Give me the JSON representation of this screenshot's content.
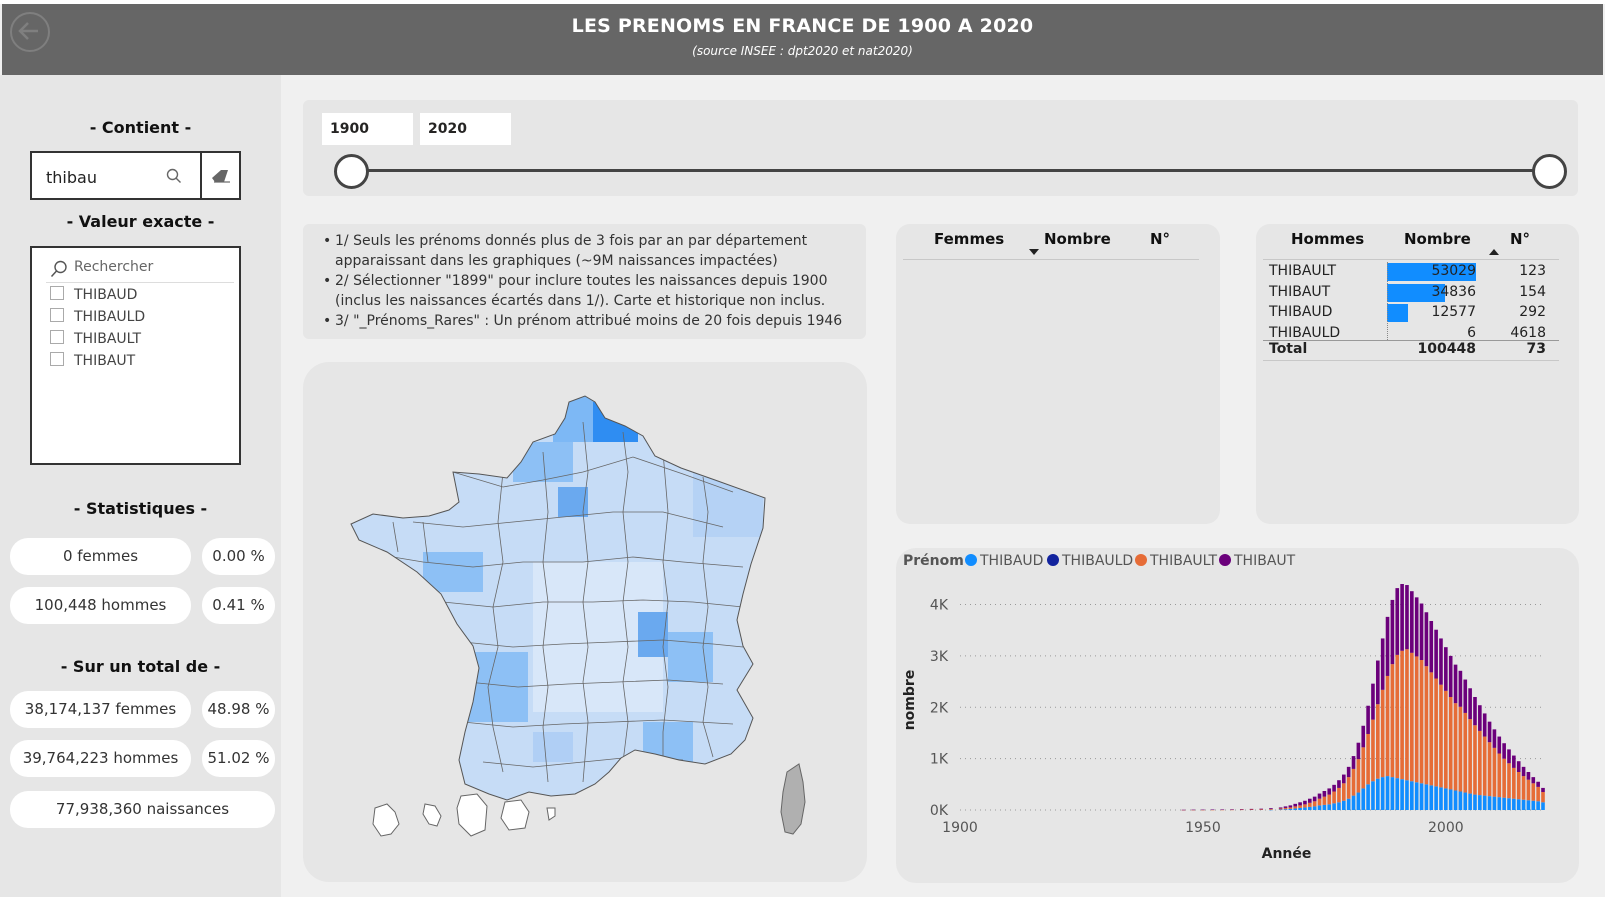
{
  "header": {
    "title": "LES PRENOMS EN FRANCE DE 1900 A 2020",
    "subtitle": "(source INSEE : dpt2020 et nat2020)"
  },
  "sidebar": {
    "contient": {
      "title": "- Contient -",
      "value": "thibau"
    },
    "valeur_exacte": {
      "title": "- Valeur exacte -",
      "placeholder": "Rechercher",
      "items": [
        "THIBAUD",
        "THIBAULD",
        "THIBAULT",
        "THIBAUT"
      ]
    },
    "statistiques": {
      "title": "- Statistiques -",
      "femmes": "0 femmes",
      "femmes_pct": "0.00 %",
      "hommes": "100,448 hommes",
      "hommes_pct": "0.41 %"
    },
    "total": {
      "title": "- Sur un total de -",
      "femmes": "38,174,137 femmes",
      "femmes_pct": "48.98 %",
      "hommes": "39,764,223 hommes",
      "hommes_pct": "51.02 %",
      "naissances": "77,938,360 naissances"
    }
  },
  "slider": {
    "start": "1900",
    "end": "2020"
  },
  "notes": [
    "1/ Seuls les prénoms donnés plus de 3 fois par an par département apparaissant dans les graphiques (~9M naissances impactées)",
    "2/ Sélectionner \"1899\" pour inclure toutes les naissances depuis 1900 (inclus les naissances écartés dans 1/). Carte et historique non inclus.",
    "3/ \"_Prénoms_Rares\" : Un prénom attribué moins de 20 fois depuis 1946"
  ],
  "femmes_table": {
    "headers": [
      "Femmes",
      "Nombre",
      "N°"
    ]
  },
  "hommes_table": {
    "headers": [
      "Hommes",
      "Nombre",
      "N°"
    ],
    "rows": [
      {
        "name": "THIBAULT",
        "nombre": "53029",
        "rank": "123",
        "value": 53029
      },
      {
        "name": "THIBAUT",
        "nombre": "34836",
        "rank": "154",
        "value": 34836
      },
      {
        "name": "THIBAUD",
        "nombre": "12577",
        "rank": "292",
        "value": 12577
      },
      {
        "name": "THIBAULD",
        "nombre": "6",
        "rank": "4618",
        "value": 6
      }
    ],
    "total": {
      "label": "Total",
      "nombre": "100448",
      "rank": "73"
    },
    "bar_color": "#118dff"
  },
  "chart_data": {
    "type": "bar",
    "stacked": true,
    "legend_title": "Prénom",
    "xlabel": "Année",
    "ylabel": "nombre",
    "x_ticks": [
      "1900",
      "1950",
      "2000"
    ],
    "y_ticks": [
      "0K",
      "1K",
      "2K",
      "3K",
      "4K"
    ],
    "xlim": [
      1900,
      2020
    ],
    "ylim": [
      0,
      4400
    ],
    "grid": true,
    "legend_position": "top-left",
    "x": [
      1946,
      1948,
      1950,
      1952,
      1954,
      1956,
      1958,
      1960,
      1962,
      1964,
      1966,
      1967,
      1968,
      1969,
      1970,
      1971,
      1972,
      1973,
      1974,
      1975,
      1976,
      1977,
      1978,
      1979,
      1980,
      1981,
      1982,
      1983,
      1984,
      1985,
      1986,
      1987,
      1988,
      1989,
      1990,
      1991,
      1992,
      1993,
      1994,
      1995,
      1996,
      1997,
      1998,
      1999,
      2000,
      2001,
      2002,
      2003,
      2004,
      2005,
      2006,
      2007,
      2008,
      2009,
      2010,
      2011,
      2012,
      2013,
      2014,
      2015,
      2016,
      2017,
      2018,
      2019,
      2020
    ],
    "series": [
      {
        "name": "THIBAUD",
        "color": "#118dff",
        "values": [
          0,
          0,
          0,
          0,
          0,
          0,
          0,
          0,
          0,
          5,
          10,
          15,
          20,
          30,
          40,
          50,
          60,
          70,
          90,
          100,
          110,
          130,
          150,
          180,
          220,
          280,
          340,
          420,
          500,
          560,
          610,
          640,
          660,
          640,
          620,
          600,
          580,
          560,
          540,
          520,
          500,
          480,
          460,
          440,
          420,
          400,
          380,
          360,
          340,
          320,
          300,
          290,
          280,
          270,
          260,
          250,
          240,
          230,
          220,
          210,
          200,
          190,
          180,
          170,
          150
        ]
      },
      {
        "name": "THIBAULD",
        "color": "#12239e",
        "values": [
          0,
          0,
          0,
          0,
          0,
          0,
          0,
          0,
          0,
          0,
          0,
          0,
          0,
          0,
          0,
          0,
          0,
          0,
          0,
          0,
          0,
          0,
          0,
          0,
          0,
          0,
          0,
          0,
          0,
          0,
          0,
          0,
          0,
          0,
          0,
          0,
          0,
          0,
          0,
          0,
          0,
          0,
          0,
          0,
          0,
          0,
          0,
          0,
          0,
          0,
          0,
          0,
          0,
          0,
          0,
          0,
          0,
          0,
          0,
          0,
          0,
          0,
          0,
          0,
          0
        ]
      },
      {
        "name": "THIBAULT",
        "color": "#e66c37",
        "values": [
          2,
          3,
          3,
          4,
          5,
          6,
          8,
          10,
          12,
          15,
          20,
          25,
          30,
          40,
          50,
          60,
          80,
          100,
          130,
          160,
          190,
          230,
          280,
          340,
          420,
          520,
          650,
          800,
          980,
          1200,
          1450,
          1700,
          1950,
          2200,
          2400,
          2500,
          2550,
          2500,
          2450,
          2400,
          2300,
          2200,
          2100,
          2000,
          1900,
          1800,
          1700,
          1650,
          1550,
          1450,
          1350,
          1250,
          1150,
          1050,
          950,
          850,
          760,
          680,
          600,
          530,
          460,
          400,
          340,
          280,
          200
        ]
      },
      {
        "name": "THIBAUT",
        "color": "#6b007b",
        "values": [
          3,
          4,
          5,
          6,
          7,
          8,
          10,
          12,
          14,
          16,
          20,
          30,
          40,
          50,
          60,
          70,
          80,
          90,
          100,
          110,
          120,
          130,
          150,
          170,
          200,
          250,
          320,
          420,
          550,
          700,
          850,
          1000,
          1150,
          1250,
          1300,
          1300,
          1250,
          1200,
          1150,
          1100,
          1050,
          1000,
          950,
          900,
          850,
          800,
          750,
          700,
          650,
          600,
          550,
          500,
          450,
          400,
          360,
          330,
          300,
          270,
          240,
          210,
          180,
          150,
          120,
          100,
          80
        ]
      }
    ]
  }
}
